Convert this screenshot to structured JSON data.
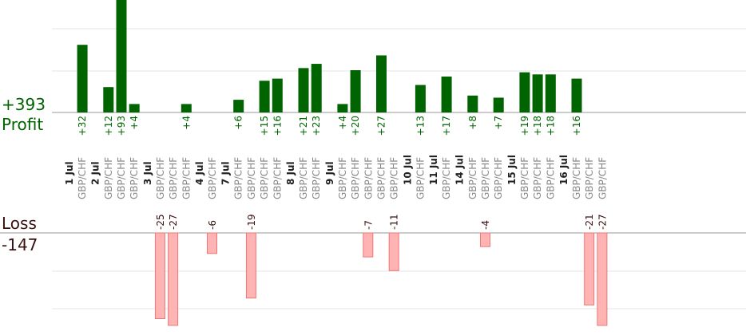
{
  "chart_data": {
    "type": "bar",
    "profit_total_label": "+393",
    "profit_label": "Profit",
    "loss_label": "Loss",
    "loss_total_label": "-147",
    "colors": {
      "profit": "#006400",
      "profit_label": "#006400",
      "loss_fill": "#ffb3b3",
      "loss_stroke": "#ee7777",
      "loss_text": "#3a1010",
      "grid": "#e6e6e6",
      "axis": "#999999"
    },
    "grid": true,
    "days": [
      {
        "label": "1 Jul",
        "trades": [
          {
            "pair": "GBP/CHF",
            "value": 32
          }
        ]
      },
      {
        "label": "2 Jul",
        "trades": [
          {
            "pair": "GBP/CHF",
            "value": 12
          },
          {
            "pair": "GBP/CHF",
            "value": 93
          },
          {
            "pair": "GBP/CHF",
            "value": 4
          }
        ]
      },
      {
        "label": "3 Jul",
        "trades": [
          {
            "pair": "GBP/CHF",
            "value": -25
          },
          {
            "pair": "GBP/CHF",
            "value": -27
          },
          {
            "pair": "GBP/CHF",
            "value": 4
          }
        ]
      },
      {
        "label": "4 Jul",
        "trades": [
          {
            "pair": "GBP/CHF",
            "value": -6
          }
        ]
      },
      {
        "label": "7 Jul",
        "trades": [
          {
            "pair": "GBP/CHF",
            "value": 6
          },
          {
            "pair": "GBP/CHF",
            "value": -19
          },
          {
            "pair": "GBP/CHF",
            "value": 15
          },
          {
            "pair": "GBP/CHF",
            "value": 16
          }
        ]
      },
      {
        "label": "8 Jul",
        "trades": [
          {
            "pair": "GBP/CHF",
            "value": 21
          },
          {
            "pair": "GBP/CHF",
            "value": 23
          }
        ]
      },
      {
        "label": "9 Jul",
        "trades": [
          {
            "pair": "GBP/CHF",
            "value": 4
          },
          {
            "pair": "GBP/CHF",
            "value": 20
          },
          {
            "pair": "GBP/CHF",
            "value": -7
          },
          {
            "pair": "GBP/CHF",
            "value": 27
          },
          {
            "pair": "GBP/CHF",
            "value": -11
          }
        ]
      },
      {
        "label": "10 Jul",
        "trades": [
          {
            "pair": "GBP/CHF",
            "value": 13
          }
        ]
      },
      {
        "label": "11 Jul",
        "trades": [
          {
            "pair": "GBP/CHF",
            "value": 17
          }
        ]
      },
      {
        "label": "14 Jul",
        "trades": [
          {
            "pair": "GBP/CHF",
            "value": 8
          },
          {
            "pair": "GBP/CHF",
            "value": -4
          },
          {
            "pair": "GBP/CHF",
            "value": 7
          }
        ]
      },
      {
        "label": "15 Jul",
        "trades": [
          {
            "pair": "GBP/CHF",
            "value": 19
          },
          {
            "pair": "GBP/CHF",
            "value": 18
          },
          {
            "pair": "GBP/CHF",
            "value": 18
          }
        ]
      },
      {
        "label": "16 Jul",
        "trades": [
          {
            "pair": "GBP/CHF",
            "value": 16
          },
          {
            "pair": "GBP/CHF",
            "value": -21
          },
          {
            "pair": "GBP/CHF",
            "value": -27
          }
        ]
      }
    ]
  }
}
